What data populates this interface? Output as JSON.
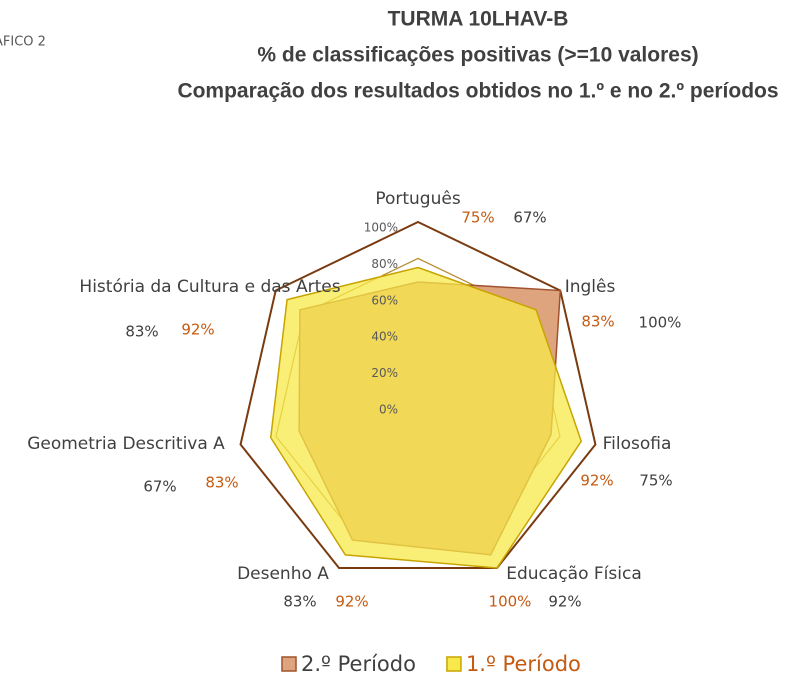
{
  "chart_data": {
    "type": "radar",
    "corner_label": "ÁFICO 2",
    "title": "TURMA 10LHAV-B",
    "subtitle": "% de classificações positivas (>=10 valores)",
    "subtitle2": "Comparação dos resultados obtidos no 1.º e no 2.º períodos",
    "categories": [
      "Português",
      "Inglês",
      "Filosofia",
      "Educação Física",
      "Desenho A",
      "Geometria Descritiva A",
      "História da Cultura e das Artes"
    ],
    "series": [
      {
        "name": "2.º Período",
        "color": "#dea47e",
        "values": [
          67,
          100,
          75,
          92,
          83,
          67,
          83
        ],
        "value_labels": [
          "67%",
          "100%",
          "75%",
          "92%",
          "83%",
          "67%",
          "83%"
        ]
      },
      {
        "name": "1.º Período",
        "color": "#f7e94a",
        "values": [
          75,
          83,
          92,
          100,
          92,
          83,
          92
        ],
        "value_labels": [
          "75%",
          "83%",
          "92%",
          "100%",
          "92%",
          "83%",
          "92%"
        ]
      }
    ],
    "ylim": [
      0,
      100
    ],
    "yticks": [
      {
        "value": 0,
        "label": "0%"
      },
      {
        "value": 20,
        "label": "20%"
      },
      {
        "value": 40,
        "label": "40%"
      },
      {
        "value": 60,
        "label": "60%"
      },
      {
        "value": 80,
        "label": "80%"
      },
      {
        "value": 100,
        "label": "100%"
      }
    ],
    "grid": true,
    "legend": "bottom"
  }
}
